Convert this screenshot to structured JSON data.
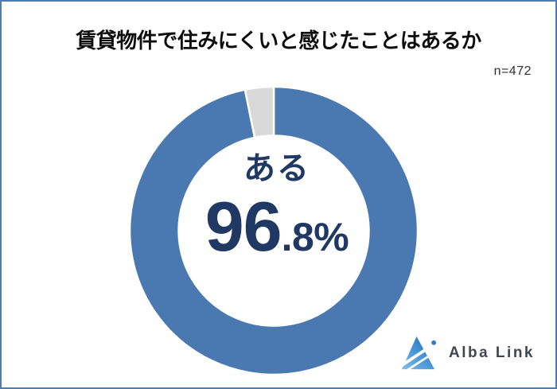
{
  "page": {
    "background_color": "#ffffff",
    "border_color": "#4e7cb3"
  },
  "chart_data": {
    "type": "pie",
    "subtype": "donut",
    "title": "賃貸物件で住みにくいと感じたことはあるか",
    "sample_size_label": "n=472",
    "segments": [
      {
        "label": "ある",
        "value": 96.8,
        "color": "#4a79b2"
      },
      {
        "label": "",
        "value": 3.2,
        "color": "#d9d9d9"
      }
    ],
    "start_angle_deg": 0,
    "direction": "clockwise",
    "inner_radius_ratio": 0.66,
    "slice_border_color": "#ffffff",
    "legend": "none",
    "center_label": {
      "category": "ある",
      "value_big": "96",
      "value_small": ".8%",
      "text_color": "#1f3864"
    }
  },
  "branding": {
    "logo_text": "Alba Link",
    "logo_icon_name": "alba-link-triangle-logo",
    "logo_text_color": "#43474d",
    "logo_icon_colors": [
      "#85bce6",
      "#4f9ad8",
      "#1e6cbd",
      "#2e7ccd"
    ]
  }
}
